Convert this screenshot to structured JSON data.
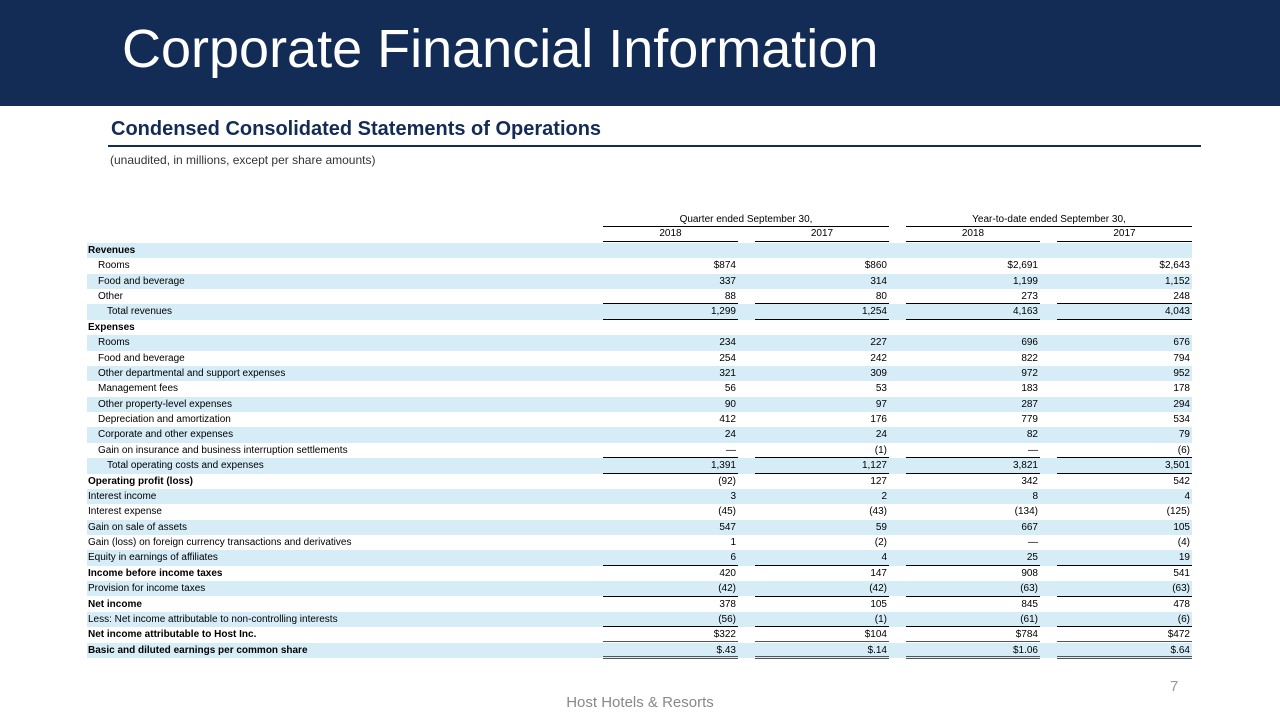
{
  "header": {
    "title": "Corporate Financial Information"
  },
  "section": {
    "title": "Condensed Consolidated Statements of Operations",
    "note": "(unaudited, in millions, except per share amounts)"
  },
  "table": {
    "groups": [
      "Quarter ended September 30,",
      "Year-to-date ended September 30,"
    ],
    "years": [
      "2018",
      "2017",
      "2018",
      "2017"
    ],
    "rows": [
      {
        "label": "Revenues"
      },
      {
        "label": "Rooms",
        "values": [
          "$874",
          "$860",
          "$2,691",
          "$2,643"
        ]
      },
      {
        "label": "Food and beverage",
        "values": [
          "337",
          "314",
          "1,199",
          "1,152"
        ]
      },
      {
        "label": "Other",
        "values": [
          "88",
          "80",
          "273",
          "248"
        ]
      },
      {
        "label": "Total revenues",
        "values": [
          "1,299",
          "1,254",
          "4,163",
          "4,043"
        ]
      },
      {
        "label": "Expenses"
      },
      {
        "label": "Rooms",
        "values": [
          "234",
          "227",
          "696",
          "676"
        ]
      },
      {
        "label": "Food and beverage",
        "values": [
          "254",
          "242",
          "822",
          "794"
        ]
      },
      {
        "label": "Other departmental and support expenses",
        "values": [
          "321",
          "309",
          "972",
          "952"
        ]
      },
      {
        "label": "Management fees",
        "values": [
          "56",
          "53",
          "183",
          "178"
        ]
      },
      {
        "label": "Other property-level expenses",
        "values": [
          "90",
          "97",
          "287",
          "294"
        ]
      },
      {
        "label": "Depreciation and amortization",
        "values": [
          "412",
          "176",
          "779",
          "534"
        ]
      },
      {
        "label": "Corporate and other expenses",
        "values": [
          "24",
          "24",
          "82",
          "79"
        ]
      },
      {
        "label": "Gain on insurance and business interruption settlements",
        "values": [
          "—",
          "(1)",
          "—",
          "(6)"
        ]
      },
      {
        "label": "Total operating costs and expenses",
        "values": [
          "1,391",
          "1,127",
          "3,821",
          "3,501"
        ]
      },
      {
        "label": "Operating profit (loss)",
        "values": [
          "(92)",
          "127",
          "342",
          "542"
        ]
      },
      {
        "label": "Interest income",
        "values": [
          "3",
          "2",
          "8",
          "4"
        ]
      },
      {
        "label": "Interest expense",
        "values": [
          "(45)",
          "(43)",
          "(134)",
          "(125)"
        ]
      },
      {
        "label": "Gain on sale of assets",
        "values": [
          "547",
          "59",
          "667",
          "105"
        ]
      },
      {
        "label": "Gain (loss) on foreign currency transactions and derivatives",
        "values": [
          "1",
          "(2)",
          "—",
          "(4)"
        ]
      },
      {
        "label": "Equity in earnings of affiliates",
        "values": [
          "6",
          "4",
          "25",
          "19"
        ]
      },
      {
        "label": "Income before income taxes",
        "values": [
          "420",
          "147",
          "908",
          "541"
        ]
      },
      {
        "label": "Provision for income taxes",
        "values": [
          "(42)",
          "(42)",
          "(63)",
          "(63)"
        ]
      },
      {
        "label": "Net income",
        "values": [
          "378",
          "105",
          "845",
          "478"
        ]
      },
      {
        "label": "Less: Net income attributable to non-controlling interests",
        "values": [
          "(56)",
          "(1)",
          "(61)",
          "(6)"
        ]
      },
      {
        "label": "Net income attributable to Host Inc.",
        "values": [
          "$322",
          "$104",
          "$784",
          "$472"
        ]
      },
      {
        "label": "Basic and diluted earnings per common share",
        "values": [
          "$.43",
          "$.14",
          "$1.06",
          "$.64"
        ]
      }
    ]
  },
  "footer": {
    "company": "Host Hotels & Resorts",
    "page": "7"
  }
}
